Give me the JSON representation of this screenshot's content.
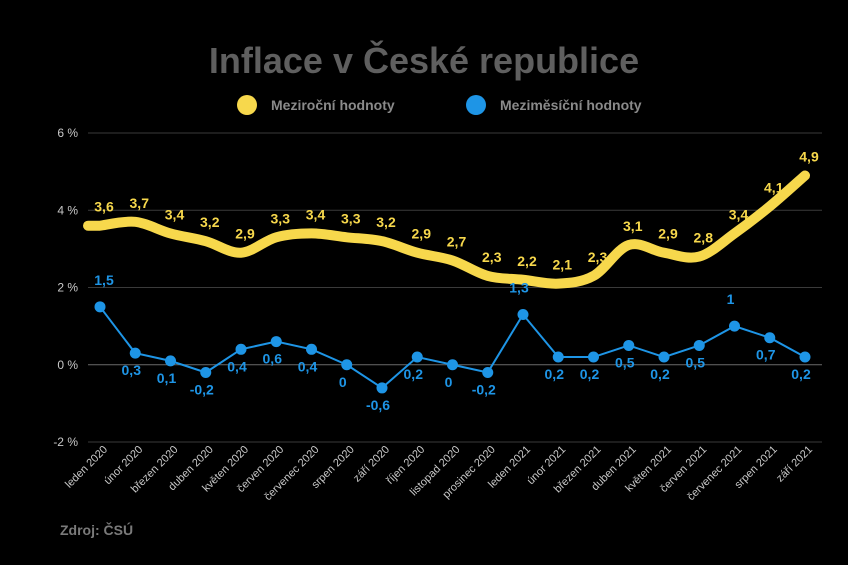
{
  "title": "Inflace v České republice",
  "source": "Zdroj: ČSÚ",
  "colors": {
    "yoy": "#f7d84c",
    "mom": "#1e95e6",
    "grid": "#3a3a3a",
    "axis_text": "#c8c8c8"
  },
  "chart_data": {
    "type": "line",
    "title": "Inflace v České republice",
    "xlabel": "",
    "ylabel": "",
    "ylim": [
      -2,
      6
    ],
    "yticks": [
      -2,
      0,
      2,
      4,
      6
    ],
    "ytick_labels": [
      "-2 %",
      "0 %",
      "2 %",
      "4 %",
      "6 %"
    ],
    "grid": true,
    "legend_position": "top-center",
    "categories": [
      "leden 2020",
      "únor 2020",
      "březen 2020",
      "duben 2020",
      "květen 2020",
      "červen 2020",
      "červenec 2020",
      "srpen 2020",
      "září 2020",
      "říjen 2020",
      "listopad 2020",
      "prosinec 2020",
      "leden 2021",
      "únor 2021",
      "březen 2021",
      "duben 2021",
      "květen 2021",
      "červen 2021",
      "červenec 2021",
      "srpen 2021",
      "září 2021"
    ],
    "series": [
      {
        "name": "Meziroční hodnoty",
        "values": [
          3.6,
          3.7,
          3.4,
          3.2,
          2.9,
          3.3,
          3.4,
          3.3,
          3.2,
          2.9,
          2.7,
          2.3,
          2.2,
          2.1,
          2.3,
          3.1,
          2.9,
          2.8,
          3.4,
          4.1,
          4.9
        ],
        "labels": [
          "3,6",
          "3,7",
          "3,4",
          "3,2",
          "2,9",
          "3,3",
          "3,4",
          "3,3",
          "3,2",
          "2,9",
          "2,7",
          "2,3",
          "2,2",
          "2,1",
          "2,3",
          "3,1",
          "2,9",
          "2,8",
          "3,4",
          "4,1",
          "4,9"
        ]
      },
      {
        "name": "Meziměsíční hodnoty",
        "values": [
          1.5,
          0.3,
          0.1,
          -0.2,
          0.4,
          0.6,
          0.4,
          0,
          -0.6,
          0.2,
          0,
          -0.2,
          1.3,
          0.2,
          0.2,
          0.5,
          0.2,
          0.5,
          1,
          0.7,
          0.2
        ],
        "labels": [
          "1,5",
          "0,3",
          "0,1",
          "-0,2",
          "0,4",
          "0,6",
          "0,4",
          "0",
          "-0,6",
          "0,2",
          "0",
          "-0,2",
          "1,3",
          "0,2",
          "0,2",
          "0,5",
          "0,2",
          "0,5",
          "1",
          "0,7",
          "0,2"
        ]
      }
    ]
  }
}
